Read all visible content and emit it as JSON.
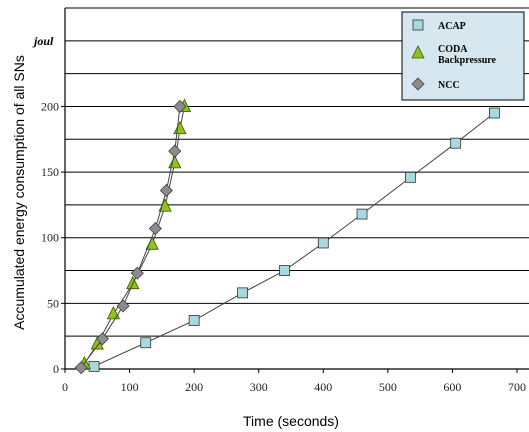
{
  "chart_data": {
    "type": "line",
    "title": "",
    "xlabel": "Time (seconds)",
    "ylabel": "Accumulated energy consumption of all SNs",
    "y_unit": "joul",
    "xlim": [
      0,
      700
    ],
    "ylim": [
      0,
      275
    ],
    "x_ticks": [
      "0",
      "100",
      "200",
      "300",
      "400",
      "500",
      "600",
      "700"
    ],
    "y_ticks": [
      "0",
      "50",
      "100",
      "150",
      "200"
    ],
    "y_gridlines": [
      0,
      25,
      50,
      75,
      100,
      125,
      150,
      175,
      200,
      225,
      250,
      275
    ],
    "grid": "horizontal",
    "legend_position": "top-right",
    "series": [
      {
        "name": "ACAP",
        "marker": "square",
        "color": "#a8d8e0",
        "x": [
          45,
          125,
          200,
          275,
          340,
          400,
          460,
          535,
          605,
          665
        ],
        "y": [
          2,
          20,
          37,
          58,
          75,
          96,
          118,
          146,
          172,
          195
        ]
      },
      {
        "name": "CODA Backpressure",
        "name_lines": [
          "CODA",
          "Backpressure"
        ],
        "marker": "triangle",
        "color": "#8dc21f",
        "x": [
          30,
          50,
          75,
          105,
          135,
          155,
          170,
          178,
          185
        ],
        "y": [
          4,
          19,
          42,
          65,
          95,
          124,
          157,
          183,
          200
        ]
      },
      {
        "name": "NCC",
        "marker": "diamond",
        "color": "#8c8c8c",
        "x": [
          25,
          58,
          90,
          112,
          140,
          157,
          170,
          178
        ],
        "y": [
          1,
          23,
          48,
          73,
          107,
          136,
          166,
          200
        ]
      }
    ]
  }
}
